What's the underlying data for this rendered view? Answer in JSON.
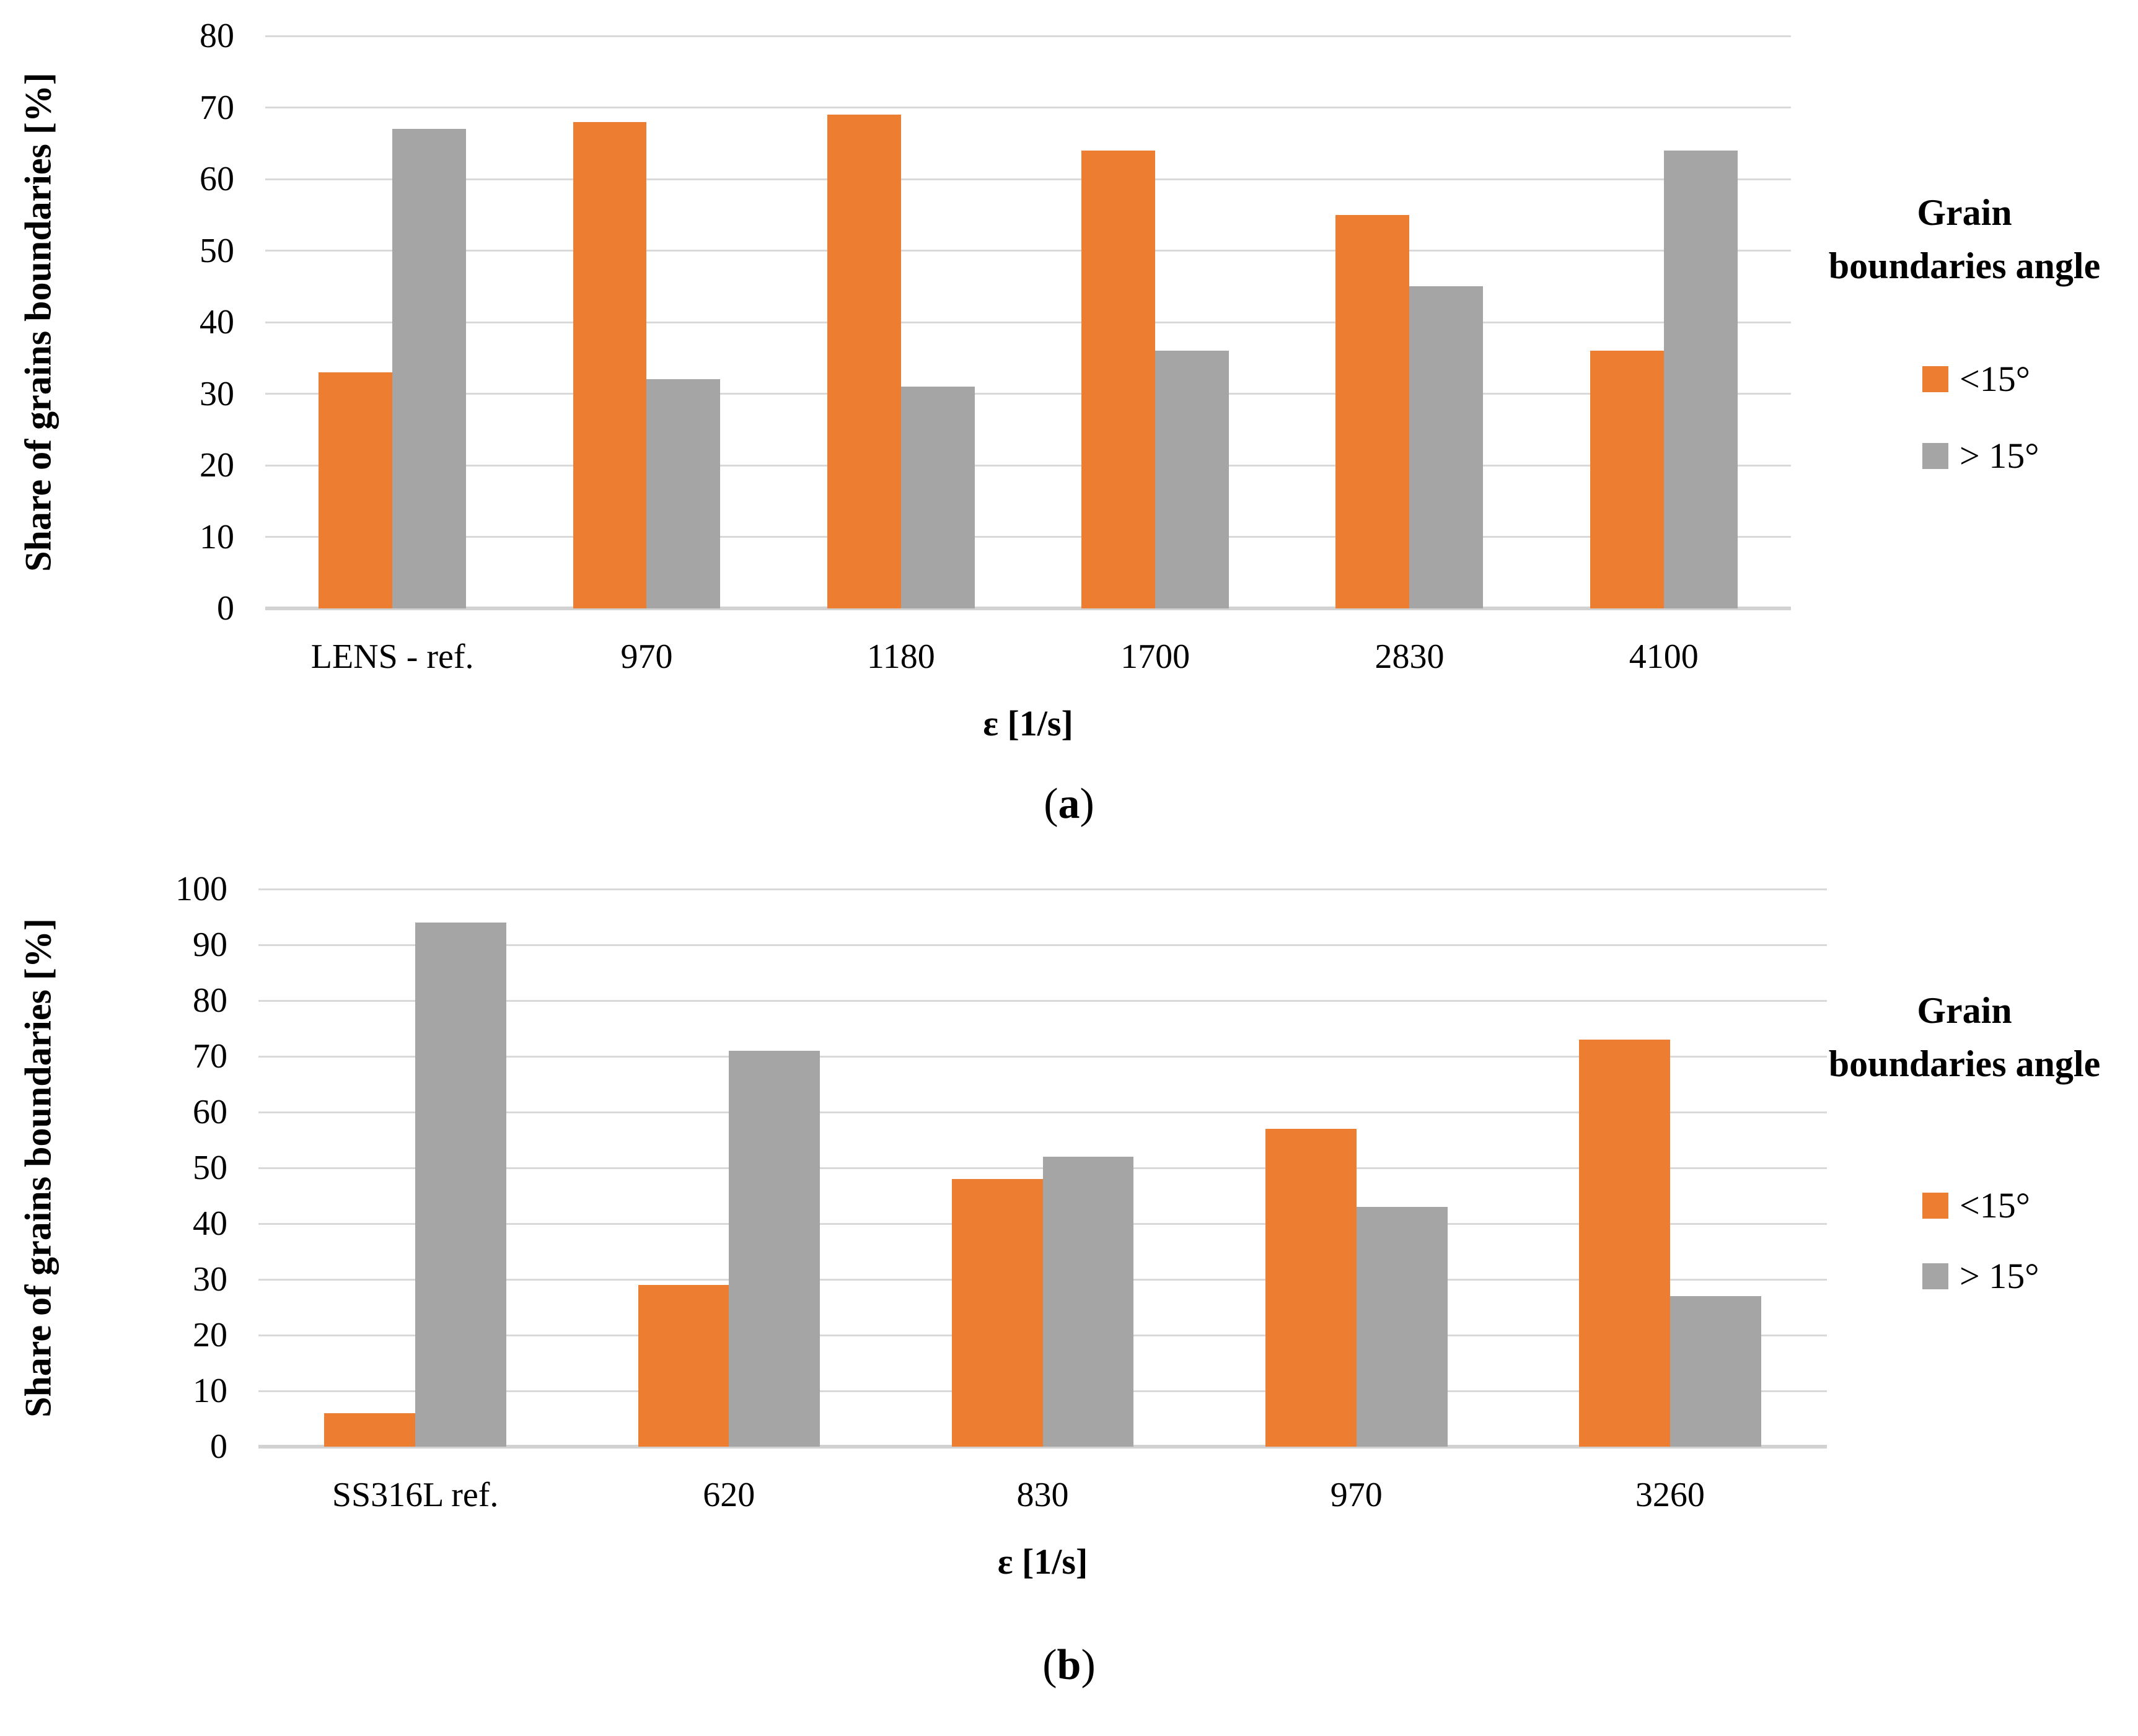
{
  "figure": {
    "background": "#ffffff",
    "text_color": "#000000",
    "gridline_color": "#d9d9d9",
    "axisline_color": "#d2d2d2"
  },
  "captions": [
    {
      "open": "(",
      "letter": "a",
      "close": ")"
    },
    {
      "open": "(",
      "letter": "b",
      "close": ")"
    }
  ],
  "chart_data": [
    {
      "id": "a",
      "type": "bar",
      "title": "",
      "ylabel": "Share of grains boundaries [%]",
      "xlabel": "ε [1/s]",
      "ylim": [
        0,
        80
      ],
      "yticks": [
        0,
        10,
        20,
        30,
        40,
        50,
        60,
        70,
        80
      ],
      "grid": true,
      "categories": [
        "LENS - ref.",
        "970",
        "1180",
        "1700",
        "2830",
        "4100"
      ],
      "series": [
        {
          "name": "<15°",
          "color": "#ED7D31",
          "values": [
            33,
            68,
            69,
            64,
            55,
            36
          ]
        },
        {
          "name": "> 15°",
          "color": "#A5A5A5",
          "values": [
            67,
            32,
            31,
            36,
            45,
            64
          ]
        }
      ],
      "legend": {
        "position": "right",
        "title_lines": [
          "Grain",
          "boundaries angle"
        ]
      }
    },
    {
      "id": "b",
      "type": "bar",
      "title": "",
      "ylabel": "Share of grains boundaries [%]",
      "xlabel": "ε [1/s]",
      "ylim": [
        0,
        100
      ],
      "yticks": [
        0,
        10,
        20,
        30,
        40,
        50,
        60,
        70,
        80,
        90,
        100
      ],
      "grid": true,
      "categories": [
        "SS316L ref.",
        "620",
        "830",
        "970",
        "3260"
      ],
      "series": [
        {
          "name": "<15°",
          "color": "#ED7D31",
          "values": [
            6,
            29,
            48,
            57,
            73
          ]
        },
        {
          "name": "> 15°",
          "color": "#A5A5A5",
          "values": [
            94,
            71,
            52,
            43,
            27
          ]
        }
      ],
      "legend": {
        "position": "right",
        "title_lines": [
          "Grain",
          "boundaries angle"
        ]
      }
    }
  ]
}
